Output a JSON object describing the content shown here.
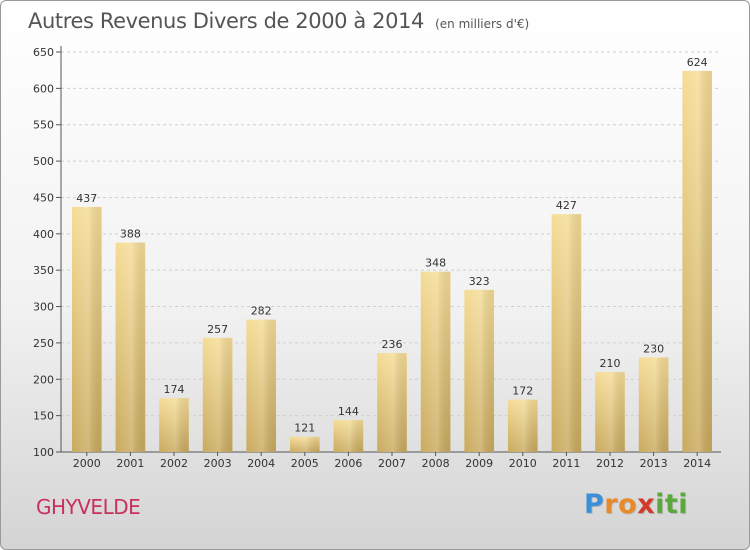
{
  "chart_data": {
    "type": "bar",
    "title": "Autres Revenus Divers de 2000 à 2014",
    "subtitle": "(en milliers d'€)",
    "categories": [
      "2000",
      "2001",
      "2002",
      "2003",
      "2004",
      "2005",
      "2006",
      "2007",
      "2008",
      "2009",
      "2010",
      "2011",
      "2012",
      "2013",
      "2014"
    ],
    "values": [
      437,
      388,
      174,
      257,
      282,
      121,
      144,
      236,
      348,
      323,
      172,
      427,
      210,
      230,
      624
    ],
    "ylim": [
      100,
      650
    ],
    "yticks": [
      100,
      150,
      200,
      250,
      300,
      350,
      400,
      450,
      500,
      550,
      600,
      650
    ],
    "grid": true,
    "bar_color_top": "#f5dc96",
    "bar_color_bottom": "#c9aa5e"
  },
  "footer": {
    "city": "GHYVELDE",
    "city_color": "#c9305b",
    "logo_letters": [
      "P",
      "r",
      "o",
      "x",
      "i",
      "t",
      "i"
    ],
    "logo_colors": [
      "#3d8fd8",
      "#e8892a",
      "#e8892a",
      "#d23b2b",
      "#5aa83a",
      "#5aa83a",
      "#5aa83a"
    ]
  }
}
